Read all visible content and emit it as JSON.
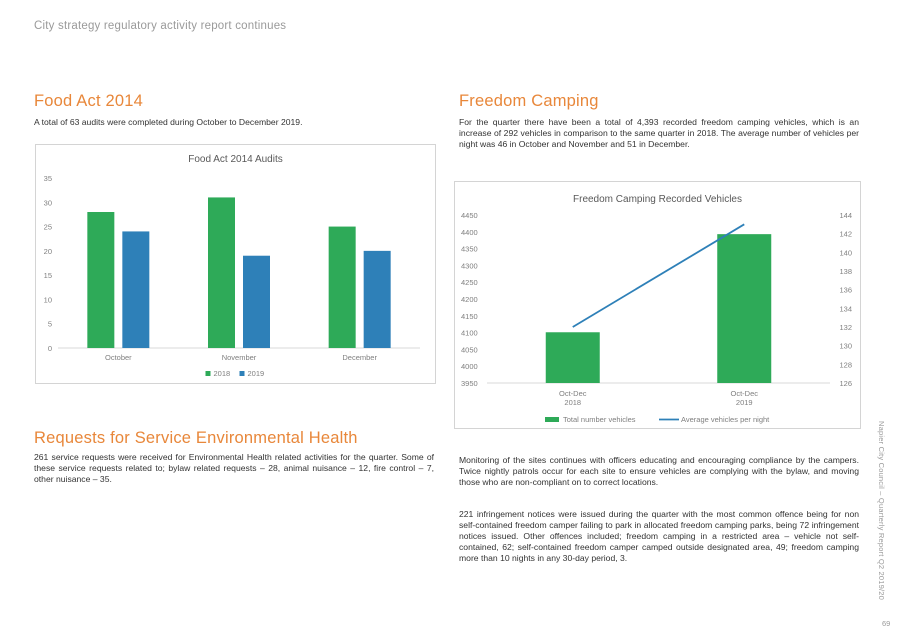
{
  "header": {
    "text": "City strategy regulatory activity report continues"
  },
  "food_act": {
    "title": "Food Act 2014",
    "text": "A total of 63 audits were completed during October to December 2019."
  },
  "freedom_camping": {
    "title": "Freedom Camping",
    "text": "For the quarter there have been a total of 4,393 recorded freedom camping vehicles, which is an increase of 292 vehicles in comparison to the same quarter in 2018. The average number of vehicles per night was 46 in October and November and 51 in December.",
    "monitoring_text": "Monitoring of the sites continues with officers educating and encouraging compliance by the campers. Twice nightly patrols occur for each site to ensure vehicles are complying with the bylaw, and moving those who are non-compliant on to correct locations.",
    "infringement_text": "221 infringement notices were issued during the quarter with the most common offence being for non self-contained freedom camper failing to park in allocated freedom camping parks, being 72 infringement notices issued.  Other offences included; freedom camping in a restricted area – vehicle not self-contained, 62; self-contained freedom camper camped outside designated area, 49; freedom camping more than 10 nights in any 30-day period, 3."
  },
  "requests": {
    "title": "Requests for Service Environmental Health",
    "text": "261 service requests were received for Environmental Health related activities for the quarter. Some of these service requests related to; bylaw related requests – 28, animal nuisance – 12, fire control – 7, other nuisance – 35."
  },
  "sidebar": {
    "text": "Napier City Council – Quarterly Report Q2 2019/20"
  },
  "page_number": "69",
  "chart_data": [
    {
      "type": "bar",
      "title": "Food Act 2014 Audits",
      "categories": [
        "October",
        "November",
        "December"
      ],
      "series": [
        {
          "name": "2018",
          "values": [
            28,
            31,
            25
          ],
          "color": "#2eaa58"
        },
        {
          "name": "2019",
          "values": [
            24,
            19,
            20
          ],
          "color": "#2e80b8"
        }
      ],
      "ylim": [
        0,
        35
      ],
      "yticks": [
        0,
        5,
        10,
        15,
        20,
        25,
        30,
        35
      ],
      "grid": false,
      "legend": "bottom"
    },
    {
      "type": "bar",
      "title": "Freedom Camping Recorded Vehicles",
      "categories": [
        "Oct-Dec\n2018",
        "Oct-Dec\n2019"
      ],
      "bar_series": {
        "name": "Total number vehicles",
        "values": [
          4101,
          4393
        ],
        "color": "#2eaa58"
      },
      "line_series": {
        "name": "Average vehicles per night",
        "values": [
          132,
          143
        ],
        "color": "#2e80b8"
      },
      "ylim_left": [
        3950,
        4450
      ],
      "yticks_left": [
        3950,
        4000,
        4050,
        4100,
        4150,
        4200,
        4250,
        4300,
        4350,
        4400,
        4450
      ],
      "ylim_right": [
        126,
        144
      ],
      "yticks_right": [
        126,
        128,
        130,
        132,
        134,
        136,
        138,
        140,
        142,
        144
      ],
      "grid": false,
      "legend": "bottom"
    }
  ]
}
